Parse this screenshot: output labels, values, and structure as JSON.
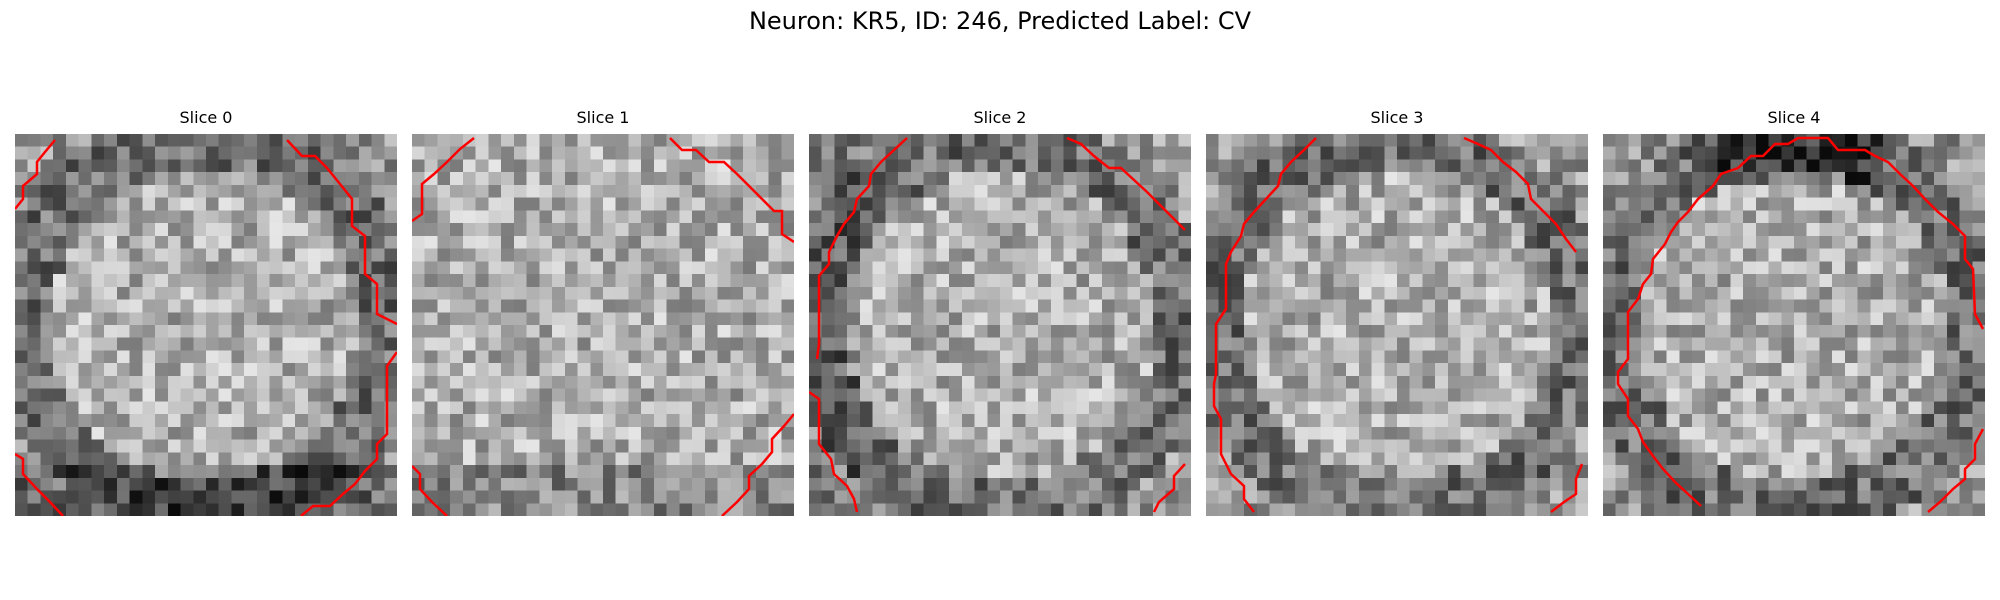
{
  "title": "Neuron: KR5, ID: 246, Predicted Label: CV",
  "colors": {
    "contour": "#ff0000",
    "background": "#ffffff"
  },
  "panels": [
    {
      "title": "Slice 0",
      "seed": 11,
      "shape": "ring-bottom"
    },
    {
      "title": "Slice 1",
      "seed": 23,
      "shape": "flat"
    },
    {
      "title": "Slice 2",
      "seed": 37,
      "shape": "ring-left"
    },
    {
      "title": "Slice 3",
      "seed": 51,
      "shape": "ring"
    },
    {
      "title": "Slice 4",
      "seed": 67,
      "shape": "ring-top"
    }
  ]
}
